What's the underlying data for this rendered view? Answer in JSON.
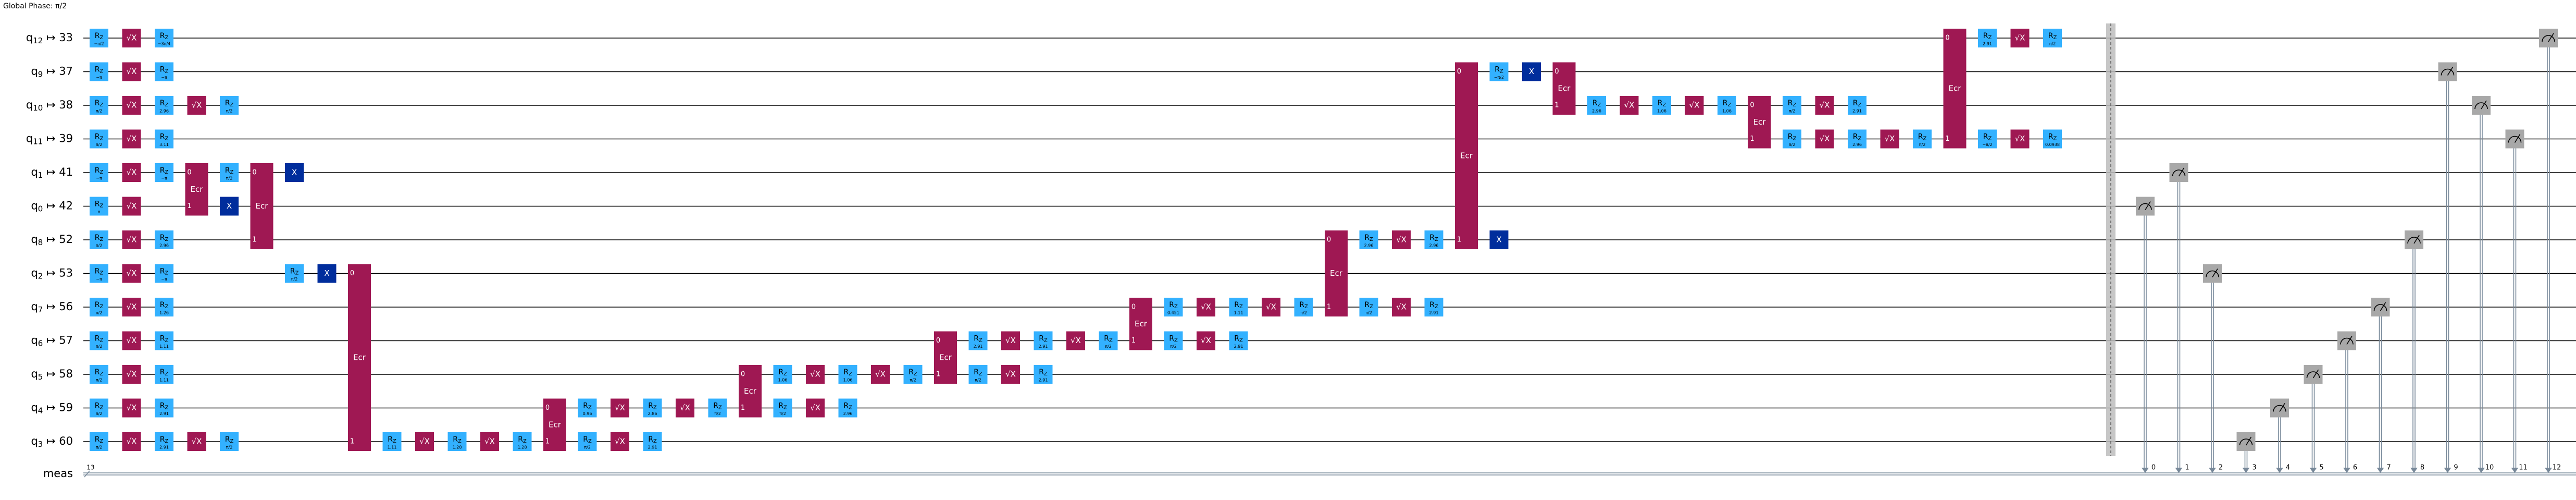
{
  "header": {
    "global_phase": "Global Phase: π/2"
  },
  "colors": {
    "rz": "#33b1ff",
    "sx": "#9f1853",
    "x": "#002d9c",
    "ecr": "#9f1853",
    "measure": "#a8a8a8",
    "wire": "#000000",
    "classical": "#778899",
    "barrier": "#bdbdbd"
  },
  "wires": [
    {
      "label": "q12 ↦ 33",
      "q": "12",
      "p": "33"
    },
    {
      "label": "q9 ↦ 37",
      "q": "9",
      "p": "37"
    },
    {
      "label": "q10 ↦ 38",
      "q": "10",
      "p": "38"
    },
    {
      "label": "q11 ↦ 39",
      "q": "11",
      "p": "39"
    },
    {
      "label": "q1 ↦ 41",
      "q": "1",
      "p": "41"
    },
    {
      "label": "q0 ↦ 42",
      "q": "0",
      "p": "42"
    },
    {
      "label": "q8 ↦ 52",
      "q": "8",
      "p": "52"
    },
    {
      "label": "q2 ↦ 53",
      "q": "2",
      "p": "53"
    },
    {
      "label": "q7 ↦ 56",
      "q": "7",
      "p": "56"
    },
    {
      "label": "q6 ↦ 57",
      "q": "6",
      "p": "57"
    },
    {
      "label": "q5 ↦ 58",
      "q": "5",
      "p": "58"
    },
    {
      "label": "q4 ↦ 59",
      "q": "4",
      "p": "59"
    },
    {
      "label": "q3 ↦ 60",
      "q": "3",
      "p": "60"
    }
  ],
  "classical": {
    "label": "meas",
    "width": "13"
  },
  "gate_labels": {
    "rz": "Rz",
    "sx": "√X",
    "x": "X",
    "ecr": "Ecr"
  },
  "gates": [
    {
      "t": "rz",
      "w": 0,
      "c": 0,
      "p": "−π/2"
    },
    {
      "t": "sx",
      "w": 0,
      "c": 1
    },
    {
      "t": "rz",
      "w": 0,
      "c": 2,
      "p": "−3π/4"
    },
    {
      "t": "rz",
      "w": 1,
      "c": 0,
      "p": "−π"
    },
    {
      "t": "sx",
      "w": 1,
      "c": 1
    },
    {
      "t": "rz",
      "w": 1,
      "c": 2,
      "p": "−π"
    },
    {
      "t": "rz",
      "w": 2,
      "c": 0,
      "p": "π/2"
    },
    {
      "t": "sx",
      "w": 2,
      "c": 1
    },
    {
      "t": "rz",
      "w": 2,
      "c": 2,
      "p": "2.96"
    },
    {
      "t": "sx",
      "w": 2,
      "c": 3
    },
    {
      "t": "rz",
      "w": 2,
      "c": 4,
      "p": "π/2"
    },
    {
      "t": "rz",
      "w": 3,
      "c": 0,
      "p": "π/2"
    },
    {
      "t": "sx",
      "w": 3,
      "c": 1
    },
    {
      "t": "rz",
      "w": 3,
      "c": 2,
      "p": "3.11"
    },
    {
      "t": "rz",
      "w": 4,
      "c": 0,
      "p": "−π"
    },
    {
      "t": "sx",
      "w": 4,
      "c": 1
    },
    {
      "t": "rz",
      "w": 4,
      "c": 2,
      "p": "−π"
    },
    {
      "t": "rz",
      "w": 5,
      "c": 0,
      "p": "π"
    },
    {
      "t": "sx",
      "w": 5,
      "c": 1
    },
    {
      "t": "rz",
      "w": 6,
      "c": 0,
      "p": "π/2"
    },
    {
      "t": "sx",
      "w": 6,
      "c": 1
    },
    {
      "t": "rz",
      "w": 6,
      "c": 2,
      "p": "2.96"
    },
    {
      "t": "rz",
      "w": 7,
      "c": 0,
      "p": "−π"
    },
    {
      "t": "sx",
      "w": 7,
      "c": 1
    },
    {
      "t": "rz",
      "w": 7,
      "c": 2,
      "p": "−π"
    },
    {
      "t": "rz",
      "w": 8,
      "c": 0,
      "p": "π/2"
    },
    {
      "t": "sx",
      "w": 8,
      "c": 1
    },
    {
      "t": "rz",
      "w": 8,
      "c": 2,
      "p": "1.26"
    },
    {
      "t": "rz",
      "w": 9,
      "c": 0,
      "p": "π/2"
    },
    {
      "t": "sx",
      "w": 9,
      "c": 1
    },
    {
      "t": "rz",
      "w": 9,
      "c": 2,
      "p": "1.11"
    },
    {
      "t": "rz",
      "w": 10,
      "c": 0,
      "p": "π/2"
    },
    {
      "t": "sx",
      "w": 10,
      "c": 1
    },
    {
      "t": "rz",
      "w": 10,
      "c": 2,
      "p": "1.11"
    },
    {
      "t": "rz",
      "w": 11,
      "c": 0,
      "p": "π/2"
    },
    {
      "t": "sx",
      "w": 11,
      "c": 1
    },
    {
      "t": "rz",
      "w": 11,
      "c": 2,
      "p": "2.91"
    },
    {
      "t": "rz",
      "w": 12,
      "c": 0,
      "p": "π/2"
    },
    {
      "t": "sx",
      "w": 12,
      "c": 1
    },
    {
      "t": "rz",
      "w": 12,
      "c": 2,
      "p": "2.91"
    },
    {
      "t": "sx",
      "w": 12,
      "c": 3
    },
    {
      "t": "rz",
      "w": 12,
      "c": 4,
      "p": "π/2"
    },
    {
      "t": "rz",
      "w": 4,
      "c": 4,
      "p": "π/2"
    },
    {
      "t": "x",
      "w": 5,
      "c": 4
    },
    {
      "t": "rz",
      "w": 7,
      "c": 6,
      "p": "π/2"
    },
    {
      "t": "x",
      "w": 7,
      "c": 7
    },
    {
      "t": "x",
      "w": 4,
      "c": 6
    },
    {
      "t": "rz",
      "w": 12,
      "c": 9,
      "p": "1.11"
    },
    {
      "t": "sx",
      "w": 12,
      "c": 10
    },
    {
      "t": "rz",
      "w": 12,
      "c": 11,
      "p": "1.28"
    },
    {
      "t": "sx",
      "w": 12,
      "c": 12
    },
    {
      "t": "rz",
      "w": 12,
      "c": 13,
      "p": "1.28"
    },
    {
      "t": "rz",
      "w": 11,
      "c": 15,
      "p": "0.96"
    },
    {
      "t": "sx",
      "w": 11,
      "c": 16
    },
    {
      "t": "rz",
      "w": 11,
      "c": 17,
      "p": "2.86"
    },
    {
      "t": "sx",
      "w": 11,
      "c": 18
    },
    {
      "t": "rz",
      "w": 11,
      "c": 19,
      "p": "π/2"
    },
    {
      "t": "rz",
      "w": 12,
      "c": 15,
      "p": "π/2"
    },
    {
      "t": "sx",
      "w": 12,
      "c": 16
    },
    {
      "t": "rz",
      "w": 12,
      "c": 17,
      "p": "2.91"
    },
    {
      "t": "rz",
      "w": 10,
      "c": 21,
      "p": "1.06"
    },
    {
      "t": "sx",
      "w": 10,
      "c": 22
    },
    {
      "t": "rz",
      "w": 10,
      "c": 23,
      "p": "1.06"
    },
    {
      "t": "sx",
      "w": 10,
      "c": 24
    },
    {
      "t": "rz",
      "w": 10,
      "c": 25,
      "p": "π/2"
    },
    {
      "t": "rz",
      "w": 11,
      "c": 21,
      "p": "π/2"
    },
    {
      "t": "sx",
      "w": 11,
      "c": 22
    },
    {
      "t": "rz",
      "w": 11,
      "c": 23,
      "p": "2.96"
    },
    {
      "t": "rz",
      "w": 9,
      "c": 27,
      "p": "2.91"
    },
    {
      "t": "sx",
      "w": 9,
      "c": 28
    },
    {
      "t": "rz",
      "w": 9,
      "c": 29,
      "p": "2.91"
    },
    {
      "t": "sx",
      "w": 9,
      "c": 30
    },
    {
      "t": "rz",
      "w": 9,
      "c": 31,
      "p": "π/2"
    },
    {
      "t": "rz",
      "w": 10,
      "c": 27,
      "p": "π/2"
    },
    {
      "t": "sx",
      "w": 10,
      "c": 28
    },
    {
      "t": "rz",
      "w": 10,
      "c": 29,
      "p": "2.91"
    },
    {
      "t": "rz",
      "w": 8,
      "c": 33,
      "p": "0.451"
    },
    {
      "t": "sx",
      "w": 8,
      "c": 34
    },
    {
      "t": "rz",
      "w": 8,
      "c": 35,
      "p": "1.11"
    },
    {
      "t": "sx",
      "w": 8,
      "c": 36
    },
    {
      "t": "rz",
      "w": 8,
      "c": 37,
      "p": "π/2"
    },
    {
      "t": "rz",
      "w": 9,
      "c": 33,
      "p": "π/2"
    },
    {
      "t": "sx",
      "w": 9,
      "c": 34
    },
    {
      "t": "rz",
      "w": 9,
      "c": 35,
      "p": "2.91"
    },
    {
      "t": "rz",
      "w": 6,
      "c": 39,
      "p": "2.96"
    },
    {
      "t": "sx",
      "w": 6,
      "c": 40
    },
    {
      "t": "rz",
      "w": 6,
      "c": 41,
      "p": "2.96"
    },
    {
      "t": "rz",
      "w": 8,
      "c": 39,
      "p": "π/2"
    },
    {
      "t": "sx",
      "w": 8,
      "c": 40
    },
    {
      "t": "rz",
      "w": 8,
      "c": 41,
      "p": "2.91"
    },
    {
      "t": "rz",
      "w": 1,
      "c": 43,
      "p": "−π/2"
    },
    {
      "t": "x",
      "w": 1,
      "c": 44
    },
    {
      "t": "x",
      "w": 6,
      "c": 43
    },
    {
      "t": "rz",
      "w": 2,
      "c": 46,
      "p": "2.96"
    },
    {
      "t": "sx",
      "w": 2,
      "c": 47
    },
    {
      "t": "rz",
      "w": 2,
      "c": 48,
      "p": "1.06"
    },
    {
      "t": "sx",
      "w": 2,
      "c": 49
    },
    {
      "t": "rz",
      "w": 2,
      "c": 50,
      "p": "1.06"
    },
    {
      "t": "rz",
      "w": 3,
      "c": 52,
      "p": "π/2"
    },
    {
      "t": "sx",
      "w": 3,
      "c": 53
    },
    {
      "t": "rz",
      "w": 3,
      "c": 54,
      "p": "2.96"
    },
    {
      "t": "sx",
      "w": 3,
      "c": 55
    },
    {
      "t": "rz",
      "w": 3,
      "c": 56,
      "p": "π/2"
    },
    {
      "t": "rz",
      "w": 2,
      "c": 52,
      "p": "π/2"
    },
    {
      "t": "sx",
      "w": 2,
      "c": 53
    },
    {
      "t": "rz",
      "w": 2,
      "c": 54,
      "p": "2.91"
    },
    {
      "t": "rz",
      "w": 0,
      "c": 58,
      "p": "2.91"
    },
    {
      "t": "sx",
      "w": 0,
      "c": 59
    },
    {
      "t": "rz",
      "w": 0,
      "c": 60,
      "p": "π/2"
    },
    {
      "t": "rz",
      "w": 3,
      "c": 58,
      "p": "−π/2"
    },
    {
      "t": "sx",
      "w": 3,
      "c": 59
    },
    {
      "t": "rz",
      "w": 3,
      "c": 60,
      "p": "0.0938"
    }
  ],
  "ecrs": [
    {
      "w0": 4,
      "w1": 5,
      "c": 3
    },
    {
      "w0": 4,
      "w1": 6,
      "c": 5
    },
    {
      "w0": 7,
      "w1": 12,
      "c": 8
    },
    {
      "w0": 11,
      "w1": 12,
      "c": 14
    },
    {
      "w0": 10,
      "w1": 11,
      "c": 20
    },
    {
      "w0": 9,
      "w1": 10,
      "c": 26
    },
    {
      "w0": 8,
      "w1": 9,
      "c": 32
    },
    {
      "w0": 6,
      "w1": 8,
      "c": 38
    },
    {
      "w0": 1,
      "w1": 6,
      "c": 42
    },
    {
      "w0": 1,
      "w1": 2,
      "c": 45
    },
    {
      "w0": 2,
      "w1": 3,
      "c": 51
    },
    {
      "w0": 0,
      "w1": 3,
      "c": 57
    }
  ],
  "measures": [
    {
      "w": 5,
      "b": "0"
    },
    {
      "w": 4,
      "b": "1"
    },
    {
      "w": 7,
      "b": "2"
    },
    {
      "w": 12,
      "b": "3"
    },
    {
      "w": 11,
      "b": "4"
    },
    {
      "w": 10,
      "b": "5"
    },
    {
      "w": 9,
      "b": "6"
    },
    {
      "w": 8,
      "b": "7"
    },
    {
      "w": 6,
      "b": "8"
    },
    {
      "w": 1,
      "b": "9"
    },
    {
      "w": 2,
      "b": "10"
    },
    {
      "w": 3,
      "b": "11"
    },
    {
      "w": 0,
      "b": "12"
    }
  ]
}
